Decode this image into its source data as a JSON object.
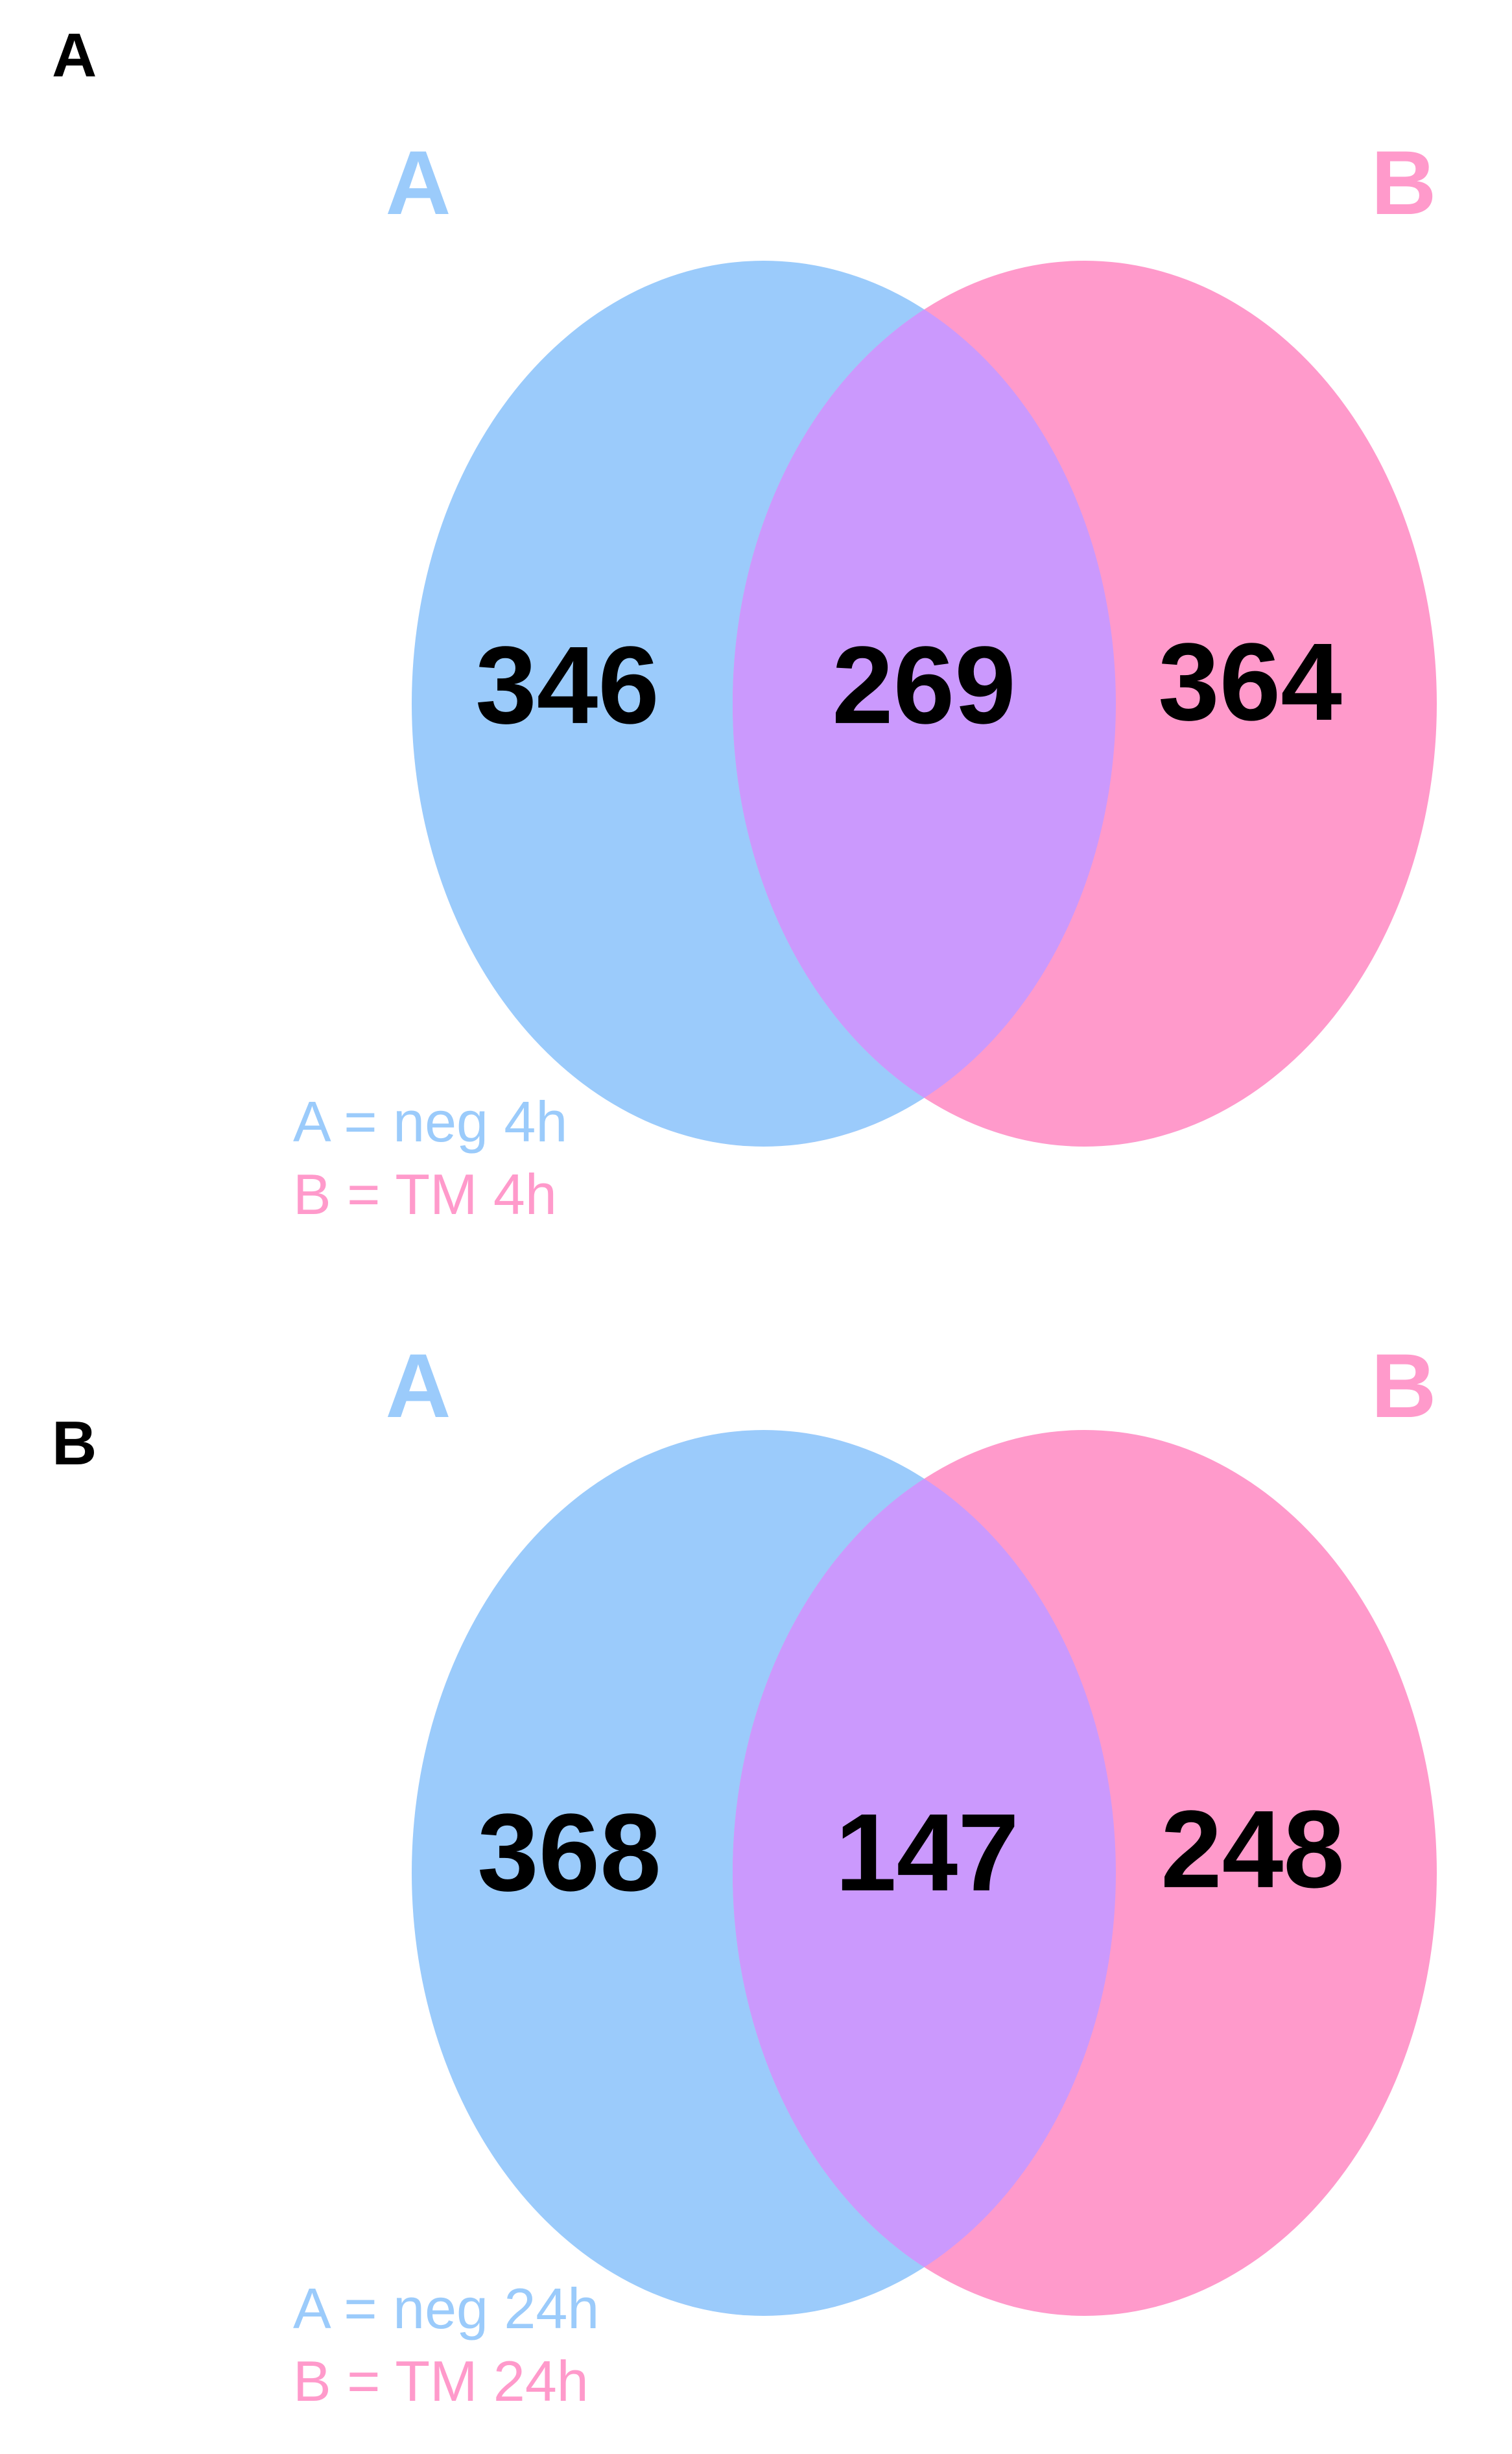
{
  "colors": {
    "set_a": "#9bcbfb",
    "set_b": "#ff9acb",
    "overlap": "#cb99fd",
    "count_text": "#000000",
    "panel_letter": "#000000"
  },
  "panels": [
    {
      "panel_label": "A",
      "set_a_label": "A",
      "set_b_label": "B",
      "counts": {
        "a_only": "346",
        "both": "269",
        "b_only": "364"
      },
      "legend": {
        "a": "A = neg 4h",
        "b": "B = TM 4h"
      }
    },
    {
      "panel_label": "B",
      "set_a_label": "A",
      "set_b_label": "B",
      "counts": {
        "a_only": "368",
        "both": "147",
        "b_only": "248"
      },
      "legend": {
        "a": "A = neg 24h",
        "b": "B = TM 24h"
      }
    }
  ]
}
